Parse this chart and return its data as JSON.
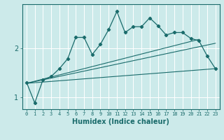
{
  "xlabel": "Humidex (Indice chaleur)",
  "bg_color": "#cceaea",
  "line_color": "#1a6b6b",
  "grid_color": "#ffffff",
  "xlim": [
    -0.5,
    23.5
  ],
  "ylim": [
    0.75,
    2.9
  ],
  "xticks": [
    0,
    1,
    2,
    3,
    4,
    5,
    6,
    7,
    8,
    9,
    10,
    11,
    12,
    13,
    14,
    15,
    16,
    17,
    18,
    19,
    20,
    21,
    22,
    23
  ],
  "yticks": [
    1,
    2
  ],
  "zigzag_x": [
    0,
    1,
    2,
    3,
    4,
    5,
    6,
    7,
    8,
    9,
    10,
    11,
    12,
    13,
    14,
    15,
    16,
    17,
    18,
    19,
    20,
    21,
    22,
    23
  ],
  "zigzag_y": [
    1.3,
    0.88,
    1.35,
    1.42,
    1.58,
    1.78,
    2.22,
    2.22,
    1.87,
    2.08,
    2.38,
    2.75,
    2.32,
    2.44,
    2.44,
    2.62,
    2.46,
    2.27,
    2.32,
    2.32,
    2.2,
    2.15,
    1.84,
    1.58
  ],
  "line1_x": [
    0,
    23
  ],
  "line1_y": [
    1.28,
    2.1
  ],
  "line2_x": [
    0,
    23
  ],
  "line2_y": [
    1.28,
    1.58
  ],
  "line3_x": [
    0,
    21
  ],
  "line3_y": [
    1.28,
    2.18
  ]
}
